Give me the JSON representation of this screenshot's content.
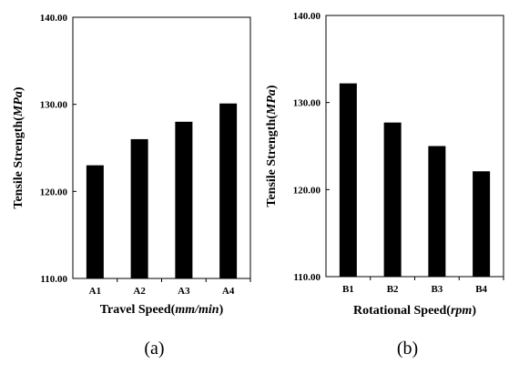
{
  "chart_data": [
    {
      "type": "bar",
      "panel_label": "(a)",
      "xlabel": "Travel Speed(",
      "xlabel_unit": "mm/min",
      "xlabel_suffix": ")",
      "ylabel": "Tensile Strength(",
      "ylabel_unit": "MPa",
      "ylabel_suffix": ")",
      "categories": [
        "A1",
        "A2",
        "A3",
        "A4"
      ],
      "values": [
        123.0,
        126.0,
        128.0,
        130.1
      ],
      "yticks": [
        "110.00",
        "120.00",
        "130.00",
        "140.00"
      ],
      "ylim": [
        110,
        140
      ],
      "bar_color": "#000000",
      "grid": false
    },
    {
      "type": "bar",
      "panel_label": "(b)",
      "xlabel": "Rotational Speed(",
      "xlabel_unit": "rpm",
      "xlabel_suffix": ")",
      "ylabel": "Tensile Strength(",
      "ylabel_unit": "MPa",
      "ylabel_suffix": ")",
      "categories": [
        "B1",
        "B2",
        "B3",
        "B4"
      ],
      "values": [
        132.2,
        127.7,
        125.0,
        122.1
      ],
      "yticks": [
        "110.00",
        "120.00",
        "130.00",
        "140.00"
      ],
      "ylim": [
        110,
        140
      ],
      "bar_color": "#000000",
      "grid": false
    }
  ]
}
